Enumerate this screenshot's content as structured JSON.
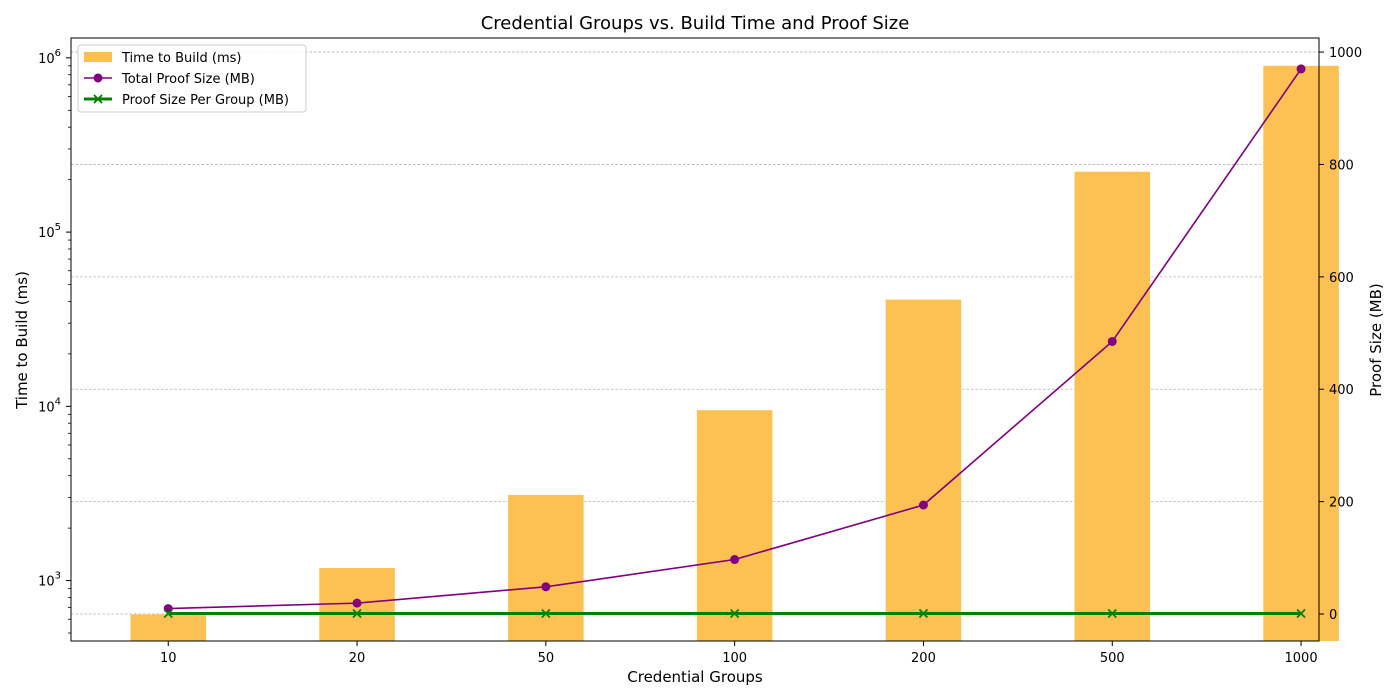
{
  "chart_data": {
    "type": "bar",
    "title": "Credential Groups vs. Build Time and Proof Size",
    "xlabel": "Credential Groups",
    "ylabel_left": "Time to Build (ms)",
    "ylabel_right": "Proof Size (MB)",
    "categories": [
      "10",
      "20",
      "50",
      "100",
      "200",
      "500",
      "1000"
    ],
    "left_axis": {
      "scale": "log",
      "ylim": [
        450,
        1300000
      ],
      "ticks": [
        1000,
        10000,
        100000,
        1000000
      ]
    },
    "right_axis": {
      "scale": "linear",
      "ylim": [
        -48,
        1025
      ],
      "ticks": [
        0,
        200,
        400,
        600,
        800,
        1000
      ]
    },
    "grid": "horizontal, right axis",
    "legend_position": "top-left",
    "series": [
      {
        "name": "Time to Build (ms)",
        "type": "bar",
        "axis": "left",
        "color": "#fdbf4f",
        "values": [
          640,
          1180,
          3100,
          9500,
          41000,
          222000,
          900000
        ]
      },
      {
        "name": "Total Proof Size (MB)",
        "type": "line",
        "axis": "right",
        "marker": "circle",
        "color": "#800080",
        "values": [
          9.7,
          19.4,
          48.5,
          97,
          194,
          485,
          970
        ]
      },
      {
        "name": "Proof Size Per Group (MB)",
        "type": "line",
        "axis": "right",
        "marker": "x",
        "color": "#008000",
        "values": [
          0.97,
          0.97,
          0.97,
          0.97,
          0.97,
          0.97,
          0.97
        ]
      }
    ]
  }
}
